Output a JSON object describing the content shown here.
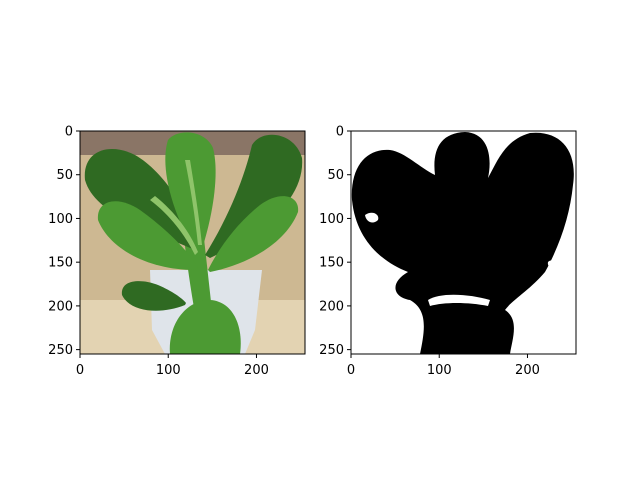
{
  "chart_data": [
    {
      "type": "image",
      "content": "photo of a green leafy plant (bok choy) in a white pot",
      "xlim": [
        0,
        255
      ],
      "ylim": [
        255,
        0
      ],
      "xticks": [
        0,
        100,
        200
      ],
      "yticks": [
        0,
        50,
        100,
        150,
        200,
        250
      ],
      "title": "",
      "xlabel": "",
      "ylabel": ""
    },
    {
      "type": "image",
      "content": "binary segmentation mask: plant region black, background white",
      "xlim": [
        0,
        255
      ],
      "ylim": [
        255,
        0
      ],
      "xticks": [
        0,
        100,
        200
      ],
      "yticks": [
        0,
        50,
        100,
        150,
        200,
        250
      ],
      "title": "",
      "xlabel": "",
      "ylabel": ""
    }
  ],
  "colors": {
    "axis": "#000000",
    "mask_fg": "#000000",
    "mask_bg": "#ffffff",
    "leaf_dark": "#2f6a22",
    "leaf_mid": "#4c9a33",
    "leaf_light": "#8fc46a",
    "pot": "#dfe4ea",
    "bg_warm": "#cdb892",
    "bg_top": "#8a7566",
    "bg_floor": "#e3d3b2"
  }
}
